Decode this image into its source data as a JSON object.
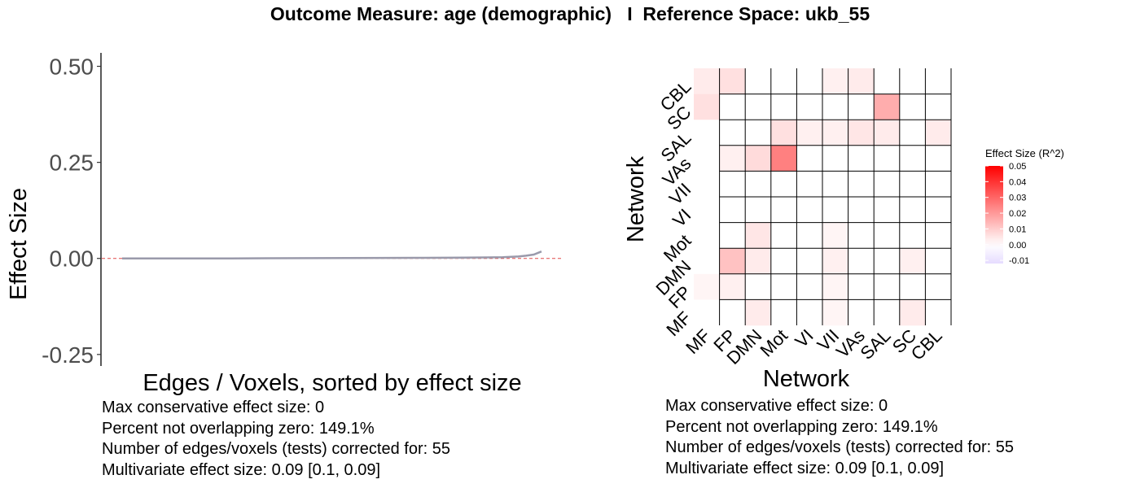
{
  "title": "Outcome Measure: age (demographic)   I  Reference Space: ukb_55",
  "stats_lines": [
    "Max conservative effect size: 0",
    "Percent not overlapping zero: 149.1%",
    "Number of edges/voxels (tests) corrected for: 55",
    "Multivariate effect size: 0.09 [0.1, 0.09]"
  ],
  "colors": {
    "line": "#9a9aab",
    "zero_line": "#e04a4a",
    "grid": "#000000",
    "low": "#e6dcff",
    "mid": "#ffffff",
    "high": "#ff0000"
  },
  "chart_data": [
    {
      "type": "line",
      "xlabel": "Edges / Voxels, sorted by effect size",
      "ylabel": "Effect Size",
      "ylim": [
        -0.28,
        0.535
      ],
      "yticks": [
        -0.25,
        0.0,
        0.25,
        0.5
      ],
      "ytick_labels": [
        "-0.25",
        "0.00",
        "0.25",
        "0.50"
      ],
      "reference_line": 0,
      "x": [
        1,
        5,
        10,
        15,
        20,
        25,
        30,
        35,
        40,
        45,
        48,
        50,
        52,
        53,
        54,
        55
      ],
      "y": [
        0.0,
        0.0,
        0.0,
        0.0,
        0.0005,
        0.0008,
        0.001,
        0.0013,
        0.0016,
        0.002,
        0.0025,
        0.003,
        0.005,
        0.007,
        0.01,
        0.018
      ]
    },
    {
      "type": "heatmap",
      "xlabel": "Network",
      "ylabel": "Network",
      "networks": [
        "MF",
        "FP",
        "DMN",
        "Mot",
        "VI",
        "VII",
        "VAs",
        "SAL",
        "SC",
        "CBL"
      ],
      "legend_title": "Effect Size (R^2)",
      "color_range": [
        -0.012,
        0.05
      ],
      "legend_ticks": [
        0.05,
        0.04,
        0.03,
        0.02,
        0.01,
        0.0,
        -0.01
      ],
      "legend_tick_labels": [
        "0.05",
        "0.04",
        "0.03",
        "0.02",
        "0.01",
        "0.00",
        "-0.01"
      ],
      "values": [
        [
          0.004,
          0.006,
          0.0,
          0.0,
          0.0,
          0.003,
          0.004,
          0.0,
          0.0,
          0.0
        ],
        [
          0.006,
          0.0,
          0.0,
          0.0,
          0.0,
          0.0,
          0.0,
          0.016,
          0.0,
          0.0
        ],
        [
          0.0,
          0.0,
          0.0,
          0.006,
          0.003,
          0.003,
          0.005,
          0.004,
          0.0,
          0.004
        ],
        [
          0.0,
          0.003,
          0.007,
          0.025,
          0.0,
          0.0,
          0.0,
          0.0,
          0.0,
          0.0
        ],
        [
          0.0,
          0.0,
          0.0,
          0.0,
          0.0,
          0.0,
          0.0,
          0.0,
          0.0,
          0.0
        ],
        [
          0.0,
          0.0,
          0.0,
          0.0,
          0.0,
          0.0,
          0.0,
          0.0,
          0.0,
          0.0
        ],
        [
          0.0,
          0.0,
          0.005,
          0.0,
          0.0,
          0.002,
          0.0,
          0.0,
          0.0,
          0.0
        ],
        [
          0.0,
          0.012,
          0.004,
          0.0,
          0.0,
          0.003,
          0.0,
          0.0,
          0.003,
          0.0
        ],
        [
          0.002,
          0.003,
          0.0,
          0.0,
          0.0,
          0.002,
          0.0,
          0.0,
          0.0,
          0.0
        ],
        [
          0.0,
          0.0,
          0.004,
          0.0,
          0.0,
          0.002,
          0.0,
          0.0,
          0.004,
          0.0
        ]
      ]
    }
  ]
}
